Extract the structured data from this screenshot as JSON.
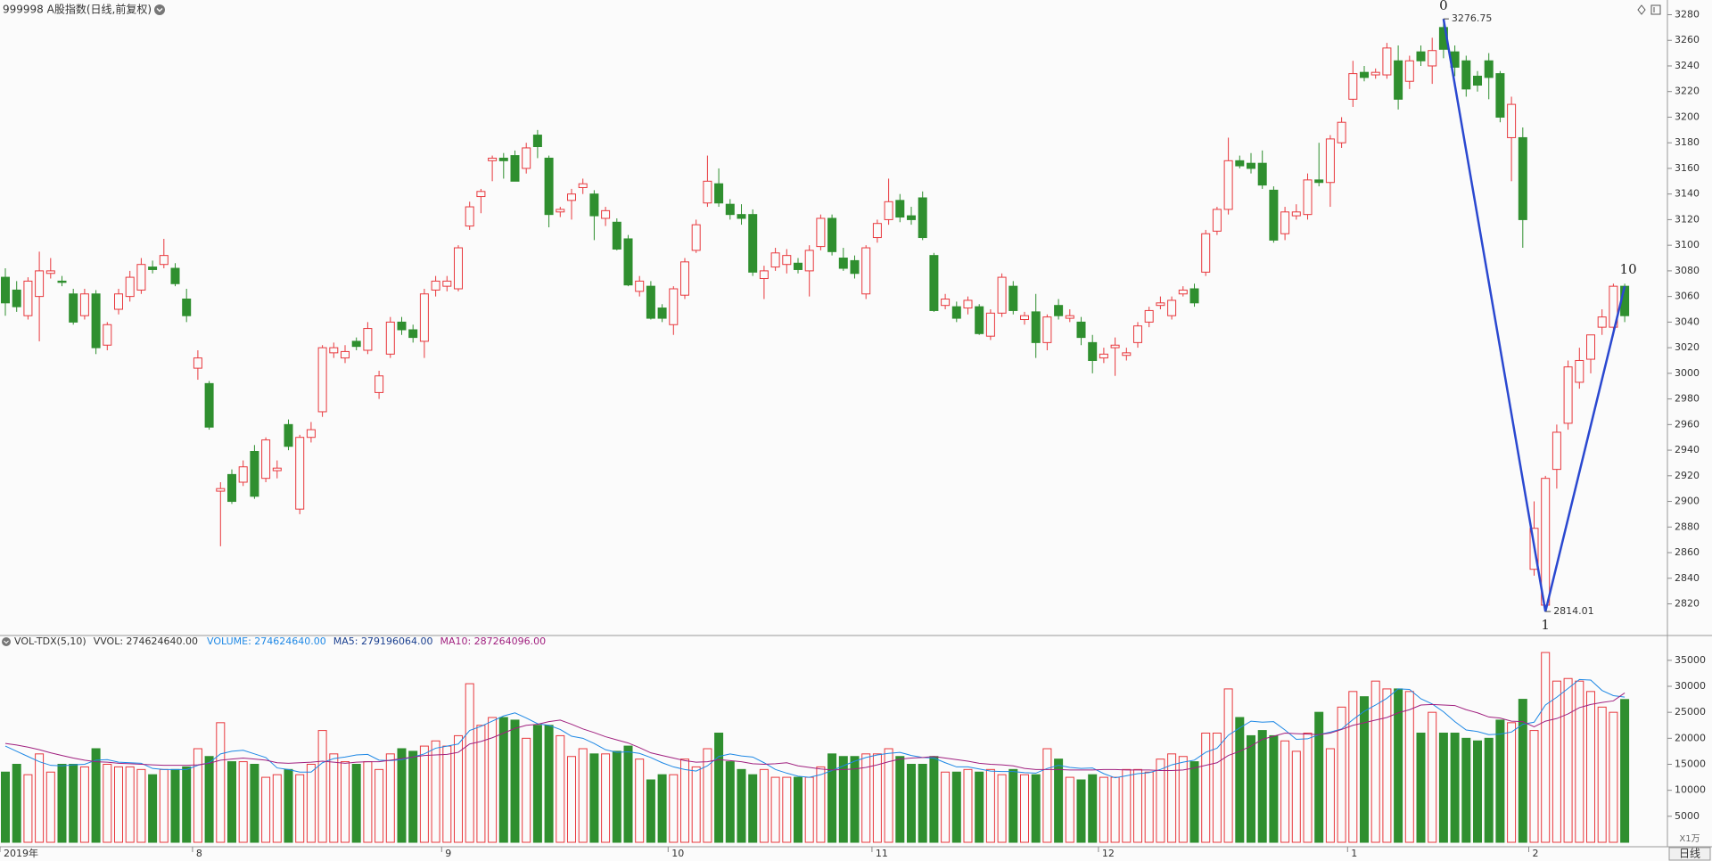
{
  "chart_data": {
    "type": "candlestick",
    "title": "999998 A股指数(日线,前复权)",
    "timeframe": "日线",
    "volume_unit": "X1万",
    "up_color": "#e8383d",
    "down_color": "#2f8f2f",
    "categories": [
      "2019年",
      null,
      null,
      null,
      null,
      null,
      null,
      null,
      null,
      null,
      null,
      null,
      null,
      null,
      null,
      null,
      null,
      "8",
      null,
      null,
      null,
      null,
      null,
      null,
      null,
      null,
      null,
      null,
      null,
      null,
      null,
      null,
      null,
      null,
      null,
      null,
      null,
      null,
      null,
      "9",
      null,
      null,
      null,
      null,
      null,
      null,
      null,
      null,
      null,
      null,
      null,
      null,
      null,
      null,
      null,
      null,
      null,
      null,
      null,
      "10",
      null,
      null,
      null,
      null,
      null,
      null,
      null,
      null,
      null,
      null,
      null,
      null,
      null,
      null,
      null,
      null,
      null,
      "11",
      null,
      null,
      null,
      null,
      null,
      null,
      null,
      null,
      null,
      null,
      null,
      null,
      null,
      null,
      null,
      null,
      null,
      null,
      null,
      "12",
      null,
      null,
      null,
      null,
      null,
      null,
      null,
      null,
      null,
      null,
      null,
      null,
      null,
      null,
      null,
      null,
      null,
      null,
      null,
      null,
      null,
      "1",
      null,
      null,
      null,
      null,
      null,
      null,
      null,
      null,
      null,
      null,
      null,
      null,
      null,
      null,
      null,
      "2",
      null,
      null,
      null,
      null,
      null,
      null,
      null,
      null
    ],
    "open": [
      3075,
      3065,
      3045,
      3060,
      3078,
      3072,
      3062,
      3045,
      3062,
      3022,
      3050,
      3060,
      3065,
      3083,
      3085,
      3082,
      3058,
      3004,
      2992,
      2908,
      2921,
      2915,
      2939,
      2918,
      2924,
      2960,
      2894,
      2950,
      2970,
      3016,
      3012,
      3025,
      3018,
      2985,
      3015,
      3040,
      3034,
      3025,
      3065,
      3068,
      3066,
      3115,
      3138,
      3166,
      3168,
      3170,
      3160,
      3186,
      3168,
      3126,
      3135,
      3145,
      3140,
      3121,
      3118,
      3105,
      3064,
      3068,
      3051,
      3038,
      3061,
      3096,
      3133,
      3148,
      3132,
      3124,
      3124,
      3074,
      3083,
      3085,
      3086,
      3080,
      3099,
      3121,
      3090,
      3088,
      3062,
      3106,
      3120,
      3135,
      3123,
      3137,
      3092,
      3053,
      3052,
      3051,
      3052,
      3029,
      3047,
      3068,
      3042,
      3048,
      3024,
      3053,
      3043,
      3040,
      3024,
      3012,
      3020,
      3014,
      3024,
      3040,
      3053,
      3045,
      3062,
      3066,
      3079,
      3111,
      3128,
      3166,
      3164,
      3164,
      3143,
      3109,
      3123,
      3124,
      3151,
      3149,
      3180,
      3214,
      3235,
      3233,
      3233,
      3244,
      3228,
      3251,
      3240,
      3270,
      3251,
      3244,
      3232,
      3244,
      3234,
      3184,
      3184,
      2847,
      2819,
      2925,
      2961,
      2993,
      3011,
      3036,
      3036,
      3068
    ],
    "high": [
      3082,
      3072,
      3075,
      3095,
      3090,
      3076,
      3066,
      3066,
      3065,
      3040,
      3066,
      3080,
      3090,
      3088,
      3105,
      3086,
      3066,
      3018,
      2994,
      2915,
      2925,
      2932,
      2944,
      2950,
      2932,
      2964,
      2952,
      2962,
      3022,
      3024,
      3022,
      3028,
      3040,
      3002,
      3044,
      3044,
      3038,
      3066,
      3076,
      3076,
      3100,
      3134,
      3144,
      3170,
      3172,
      3174,
      3180,
      3190,
      3170,
      3130,
      3144,
      3152,
      3143,
      3130,
      3121,
      3108,
      3076,
      3072,
      3054,
      3068,
      3090,
      3120,
      3170,
      3160,
      3136,
      3132,
      3128,
      3084,
      3098,
      3097,
      3090,
      3100,
      3124,
      3124,
      3098,
      3092,
      3100,
      3120,
      3152,
      3140,
      3130,
      3142,
      3094,
      3062,
      3056,
      3060,
      3054,
      3050,
      3078,
      3072,
      3048,
      3062,
      3046,
      3058,
      3050,
      3044,
      3030,
      3020,
      3028,
      3020,
      3040,
      3052,
      3060,
      3060,
      3068,
      3070,
      3112,
      3130,
      3184,
      3170,
      3172,
      3174,
      3146,
      3130,
      3132,
      3156,
      3180,
      3186,
      3200,
      3244,
      3240,
      3238,
      3258,
      3256,
      3248,
      3256,
      3262,
      3276.75,
      3256,
      3248,
      3236,
      3250,
      3236,
      3216,
      3192,
      2900,
      2920,
      2960,
      3010,
      3020,
      3030,
      3050,
      3070,
      3070
    ],
    "low": [
      3045,
      3048,
      3042,
      3025,
      3074,
      3068,
      3038,
      3042,
      3015,
      3018,
      3046,
      3056,
      3062,
      3078,
      3082,
      3068,
      3040,
      2995,
      2956,
      2865,
      2898,
      2912,
      2902,
      2915,
      2918,
      2940,
      2890,
      2946,
      2966,
      3012,
      3008,
      3018,
      3015,
      2980,
      3012,
      3030,
      3024,
      3012,
      3060,
      3064,
      3064,
      3112,
      3125,
      3150,
      3152,
      3150,
      3156,
      3168,
      3114,
      3122,
      3120,
      3140,
      3104,
      3115,
      3096,
      3068,
      3060,
      3042,
      3040,
      3030,
      3058,
      3094,
      3130,
      3130,
      3120,
      3116,
      3076,
      3058,
      3080,
      3078,
      3078,
      3060,
      3096,
      3092,
      3080,
      3074,
      3058,
      3102,
      3116,
      3118,
      3116,
      3104,
      3048,
      3050,
      3040,
      3046,
      3030,
      3026,
      3044,
      3046,
      3038,
      3012,
      3018,
      3042,
      3040,
      3022,
      3000,
      3008,
      2998,
      3010,
      3020,
      3036,
      3050,
      3042,
      3060,
      3052,
      3076,
      3108,
      3124,
      3160,
      3156,
      3144,
      3102,
      3104,
      3120,
      3120,
      3146,
      3130,
      3176,
      3208,
      3228,
      3230,
      3230,
      3206,
      3222,
      3240,
      3226,
      3246,
      3232,
      3216,
      3220,
      3214,
      3196,
      3150,
      3098,
      2842,
      2814.01,
      2910,
      2956,
      2988,
      3000,
      3030,
      3030,
      3040
    ],
    "close": [
      3055,
      3052,
      3072,
      3080,
      3080,
      3071,
      3040,
      3062,
      3020,
      3038,
      3062,
      3075,
      3085,
      3081,
      3092,
      3070,
      3045,
      3012,
      2958,
      2910,
      2900,
      2927,
      2904,
      2948,
      2926,
      2943,
      2950,
      2956,
      3020,
      3020,
      3017,
      3021,
      3035,
      2998,
      3040,
      3034,
      3028,
      3062,
      3072,
      3072,
      3098,
      3130,
      3142,
      3168,
      3166,
      3150,
      3176,
      3177,
      3124,
      3128,
      3140,
      3148,
      3123,
      3127,
      3097,
      3069,
      3072,
      3043,
      3043,
      3066,
      3087,
      3116,
      3150,
      3133,
      3124,
      3121,
      3079,
      3080,
      3094,
      3092,
      3081,
      3096,
      3121,
      3095,
      3082,
      3078,
      3098,
      3117,
      3134,
      3122,
      3120,
      3106,
      3049,
      3058,
      3043,
      3057,
      3031,
      3047,
      3075,
      3049,
      3045,
      3024,
      3044,
      3045,
      3045,
      3028,
      3010,
      3015,
      3022,
      3016,
      3037,
      3049,
      3055,
      3057,
      3065,
      3055,
      3109,
      3128,
      3166,
      3162,
      3160,
      3147,
      3104,
      3126,
      3126,
      3151,
      3149,
      3183,
      3196,
      3234,
      3231,
      3235,
      3254,
      3214,
      3244,
      3244,
      3252,
      3253,
      3239,
      3222,
      3225,
      3231,
      3200,
      3210,
      3120,
      2879,
      2918,
      2954,
      3005,
      3010,
      3030,
      3044,
      3068,
      3045
    ],
    "ylim": [
      2796,
      3288
    ],
    "yticks": [
      2820,
      2840,
      2860,
      2880,
      2900,
      2920,
      2940,
      2960,
      2980,
      3000,
      3020,
      3040,
      3060,
      3080,
      3100,
      3120,
      3140,
      3160,
      3180,
      3200,
      3220,
      3240,
      3260,
      3280
    ],
    "zigzag": {
      "x": [
        127,
        136,
        143
      ],
      "values": [
        3276.75,
        2814.01,
        3068
      ],
      "labels": [
        "0",
        "1",
        "10"
      ],
      "color": "#2a48d0"
    },
    "volume": {
      "legend": [
        {
          "text": "VOL-TDX(5,10)",
          "color": "#333333"
        },
        {
          "text": "VVOL: 274624640.00",
          "color": "#333333"
        },
        {
          "text": "VOLUME: 274624640.00",
          "color": "#1e88e5"
        },
        {
          "text": "MA5: 279196064.00",
          "color": "#1a3f8f"
        },
        {
          "text": "MA10: 287264096.00",
          "color": "#a0207f"
        }
      ],
      "values": [
        13500,
        15000,
        13000,
        17000,
        13500,
        15000,
        15000,
        14500,
        18000,
        15000,
        14500,
        14500,
        14000,
        13000,
        14000,
        14000,
        14500,
        18000,
        16500,
        23000,
        15500,
        15500,
        15000,
        12500,
        13000,
        14000,
        13000,
        15000,
        21500,
        17000,
        15500,
        15000,
        15500,
        14000,
        17000,
        18000,
        17500,
        18500,
        19500,
        18500,
        20500,
        30500,
        22500,
        24000,
        24000,
        23500,
        20000,
        22500,
        22500,
        20500,
        16500,
        18000,
        17000,
        17000,
        17500,
        18500,
        16000,
        12000,
        13000,
        13000,
        16000,
        14500,
        18000,
        21000,
        15500,
        14000,
        13000,
        14000,
        12500,
        12500,
        12500,
        12500,
        14500,
        17000,
        16500,
        16500,
        17000,
        17000,
        18000,
        16500,
        15000,
        15000,
        16500,
        13500,
        13500,
        14000,
        13500,
        14000,
        13000,
        14000,
        13000,
        13000,
        18000,
        16000,
        12500,
        12000,
        13000,
        12500,
        12500,
        14000,
        14000,
        13500,
        16000,
        17000,
        16500,
        15500,
        21000,
        21000,
        29500,
        24000,
        20500,
        21500,
        20500,
        19500,
        17500,
        21000,
        25000,
        18000,
        26000,
        29000,
        28000,
        31000,
        29500,
        29500,
        29000,
        21000,
        25000,
        21000,
        21000,
        20000,
        19500,
        20000,
        23500,
        23000,
        27500,
        21500,
        36500,
        31000,
        31500,
        31000,
        29000,
        26000,
        25000,
        27462.464
      ],
      "ma5": {
        "color": "#1e88e5",
        "values": [
          18500,
          17500,
          16500,
          15500,
          14800,
          14700,
          14900,
          15000,
          15800,
          15900,
          15400,
          15300,
          15200,
          14200,
          14000,
          14000,
          14000,
          14800,
          15300,
          17000,
          17500,
          17700,
          17000,
          16300,
          14300,
          14000,
          13500,
          13500,
          15300,
          16100,
          16400,
          16800,
          16900,
          15800,
          15700,
          15900,
          16400,
          17000,
          18100,
          18500,
          18900,
          21500,
          22300,
          23300,
          24300,
          24900,
          23900,
          22800,
          22500,
          21700,
          20400,
          20000,
          19000,
          17800,
          17300,
          17400,
          17100,
          16300,
          15300,
          14500,
          14000,
          13700,
          14700,
          16500,
          17000,
          16600,
          16400,
          15300,
          14000,
          13300,
          12700,
          12500,
          13000,
          13800,
          14700,
          15600,
          16300,
          16800,
          17100,
          17300,
          16700,
          16300,
          16200,
          15300,
          14500,
          14500,
          14100,
          13700,
          13600,
          13600,
          13400,
          13300,
          14200,
          14800,
          14400,
          14200,
          14300,
          13200,
          12400,
          12800,
          13200,
          13400,
          14000,
          14900,
          15400,
          15800,
          17300,
          18100,
          20600,
          22000,
          23300,
          23100,
          23200,
          21600,
          19800,
          19900,
          20700,
          21200,
          21800,
          23600,
          25200,
          26400,
          27700,
          29500,
          29400,
          27600,
          26600,
          25100,
          23200,
          21600,
          21300,
          20700,
          20800,
          21200,
          22700,
          23100,
          26400,
          27900,
          29600,
          31300,
          31200,
          29200,
          28200,
          27920
        ]
      },
      "ma10": {
        "color": "#a0207f",
        "values": [
          19000,
          18700,
          18300,
          17800,
          17200,
          16700,
          16200,
          15800,
          15500,
          15400,
          15200,
          15100,
          15000,
          14900,
          14800,
          14800,
          14800,
          14900,
          15200,
          15800,
          16000,
          16200,
          16000,
          15800,
          15300,
          15200,
          15300,
          15400,
          15600,
          15400,
          15200,
          15400,
          15500,
          15500,
          15800,
          16100,
          16400,
          16700,
          16800,
          16900,
          17300,
          18900,
          19400,
          20100,
          21000,
          21900,
          22500,
          22700,
          23200,
          23500,
          22700,
          21800,
          21100,
          20300,
          19700,
          19100,
          18200,
          17200,
          16700,
          16200,
          15700,
          15400,
          15500,
          15900,
          15700,
          15500,
          15100,
          15000,
          15100,
          15300,
          14700,
          14400,
          14100,
          13900,
          14000,
          14100,
          14400,
          14900,
          15500,
          16000,
          16200,
          16300,
          16500,
          16200,
          15900,
          15600,
          15200,
          15000,
          14900,
          14700,
          14200,
          14000,
          14000,
          14000,
          13900,
          13900,
          13900,
          14000,
          14000,
          13900,
          13900,
          13900,
          13800,
          13800,
          13900,
          14300,
          14800,
          15300,
          16700,
          17500,
          18500,
          19800,
          20400,
          21000,
          20900,
          20800,
          20700,
          21000,
          21700,
          22500,
          23000,
          23500,
          24000,
          24900,
          25500,
          26400,
          26500,
          26400,
          26300,
          25500,
          24900,
          24100,
          23900,
          23300,
          23200,
          22200,
          23300,
          23800,
          24700,
          25900,
          26500,
          26900,
          27200,
          28726
        ]
      },
      "ylim": [
        0,
        37200
      ],
      "yticks": [
        5000,
        10000,
        15000,
        20000,
        25000,
        30000,
        35000
      ]
    }
  }
}
